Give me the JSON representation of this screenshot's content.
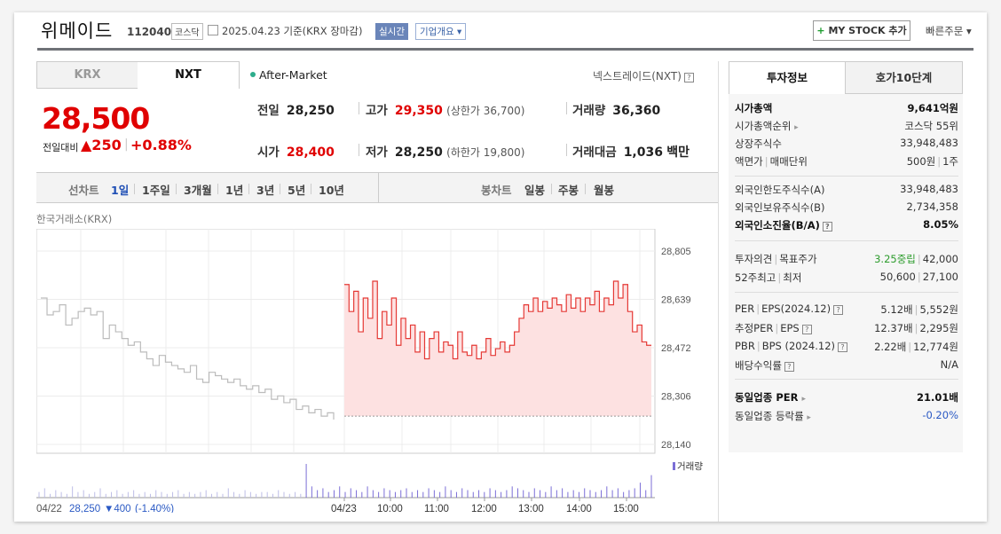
{
  "header": {
    "title": "위메이드",
    "code": "112040",
    "market": "코스닥",
    "date": "2025.04.23",
    "basis": "기준(KRX 장마감)",
    "realtime": "실시간",
    "overview": "기업개요 ▾",
    "mystock_plus": "+",
    "mystock": "MY STOCK 추가",
    "quick_order": "빠른주문 ▾"
  },
  "market_tabs": [
    "KRX",
    "NXT"
  ],
  "after_market": "After-Market",
  "nextrade": "넥스트레이드(NXT)",
  "price": {
    "current": "28,500",
    "change_label": "전일대비",
    "change": "▲250",
    "percent": "+0.88%"
  },
  "quotes": {
    "prev_label": "전일",
    "prev": "28,250",
    "high_label": "고가",
    "high": "29,350",
    "upper_limit": "(상한가 36,700)",
    "volume_label": "거래량",
    "volume": "36,360",
    "open_label": "시가",
    "open": "28,400",
    "low_label": "저가",
    "low": "28,250",
    "lower_limit": "(하한가 19,800)",
    "amount_label": "거래대금",
    "amount": "1,036",
    "amount_unit": "백만"
  },
  "periods": {
    "line_head": "선차트",
    "line": [
      "1일",
      "1주일",
      "3개월",
      "1년",
      "3년",
      "5년",
      "10년"
    ],
    "candle_head": "봉차트",
    "candle": [
      "일봉",
      "주봉",
      "월봉"
    ]
  },
  "chart_source": "한국거래소(KRX)",
  "chart_data": {
    "type": "line",
    "y_ticks": [
      "28,805",
      "28,639",
      "28,472",
      "28,306",
      "28,140"
    ],
    "ylim": [
      28140,
      28805
    ],
    "prev_close": 28250,
    "x_ticks": [
      "04/23",
      "10:00",
      "11:00",
      "12:00",
      "13:00",
      "14:00",
      "15:00"
    ],
    "series": [
      {
        "values": [
          28600,
          28550,
          28560,
          28580,
          28520,
          28540,
          28560,
          28570,
          28550,
          28560,
          28480,
          28520,
          28500,
          28480,
          28460,
          28470,
          28440,
          28420,
          28400,
          28430,
          28410,
          28400,
          28390,
          28380,
          28400,
          28360,
          28350,
          28380,
          28370,
          28360,
          28350,
          28360,
          28340,
          28330,
          28340,
          28320,
          28330,
          28300,
          28310,
          28290,
          28300,
          28270,
          28280,
          28260,
          28270,
          28250,
          28260,
          28240
        ]
      },
      {
        "values": [
          28640,
          28560,
          28620,
          28500,
          28600,
          28540,
          28650,
          28480,
          28560,
          28520,
          28600,
          28460,
          28540,
          28480,
          28520,
          28440,
          28500,
          28420,
          28480,
          28500,
          28440,
          28470,
          28460,
          28420,
          28500,
          28440,
          28430,
          28460,
          28420,
          28440,
          28480,
          28430,
          28450,
          28470,
          28440,
          28460,
          28500,
          28540,
          28580,
          28560,
          28600,
          28560,
          28590,
          28570,
          28600,
          28580,
          28560,
          28610,
          28570,
          28600,
          28560,
          28600,
          28580,
          28620,
          28560,
          28600,
          28580,
          28650,
          28600,
          28640,
          28560,
          28500,
          28520,
          28470,
          28460,
          28460
        ]
      }
    ],
    "volume_label": "거래량",
    "volume": [
      3,
      5,
      2,
      4,
      3,
      2,
      6,
      3,
      4,
      2,
      3,
      5,
      2,
      3,
      4,
      2,
      3,
      4,
      2,
      3,
      2,
      4,
      3,
      2,
      3,
      4,
      2,
      3,
      2,
      3,
      4,
      2,
      3,
      2,
      5,
      3,
      2,
      4,
      3,
      2,
      3,
      3,
      2,
      4,
      3,
      2,
      3,
      2,
      18,
      6,
      4,
      5,
      3,
      4,
      6,
      3,
      5,
      4,
      3,
      6,
      4,
      3,
      5,
      4,
      3,
      4,
      5,
      3,
      4,
      3,
      5,
      4,
      3,
      6,
      4,
      3,
      5,
      4,
      3,
      4,
      3,
      5,
      4,
      3,
      4,
      6,
      5,
      4,
      3,
      5,
      4,
      3,
      6,
      4,
      5,
      3,
      4,
      3,
      5,
      4,
      3,
      4,
      6,
      4,
      5,
      3,
      4,
      5,
      8,
      4,
      12
    ],
    "footer_date": "04/22",
    "footer_price": "28,250",
    "footer_change": "▼400",
    "footer_pct": "(-1.40%)"
  },
  "right_tabs": [
    "투자정보",
    "호가10단계"
  ],
  "info": {
    "mcap_label": "시가총액",
    "mcap": "9,641억원",
    "mcap_rank_label": "시가총액순위",
    "mcap_rank": "코스닥 55위",
    "shares_label": "상장주식수",
    "shares": "33,948,483",
    "par_label": "액면가",
    "unit_label": "매매단위",
    "par": "500원",
    "unit": "1주",
    "foreign_limit_label": "외국인한도주식수(A)",
    "foreign_limit": "33,948,483",
    "foreign_hold_label": "외국인보유주식수(B)",
    "foreign_hold": "2,734,358",
    "foreign_ratio_label": "외국인소진율(B/A)",
    "foreign_ratio": "8.05%",
    "opinion_label": "투자의견",
    "target_label": "목표주가",
    "opinion": "3.25중립",
    "target": "42,000",
    "w52_high_label": "52주최고",
    "w52_low_label": "최저",
    "w52_high": "50,600",
    "w52_low": "27,100",
    "per_label": "PER",
    "eps_label": "EPS(2024.12)",
    "per": "5.12배",
    "eps": "5,552원",
    "est_per_label": "추정PER",
    "est_eps_label": "EPS",
    "est_per": "12.37배",
    "est_eps": "2,295원",
    "pbr_label": "PBR",
    "bps_label": "BPS (2024.12)",
    "pbr": "2.22배",
    "bps": "12,774원",
    "div_label": "배당수익률",
    "div": "N/A",
    "ind_per_label": "동일업종 PER",
    "ind_per": "21.01배",
    "ind_rate_label": "동일업종 등락률",
    "ind_rate": "-0.20%"
  }
}
